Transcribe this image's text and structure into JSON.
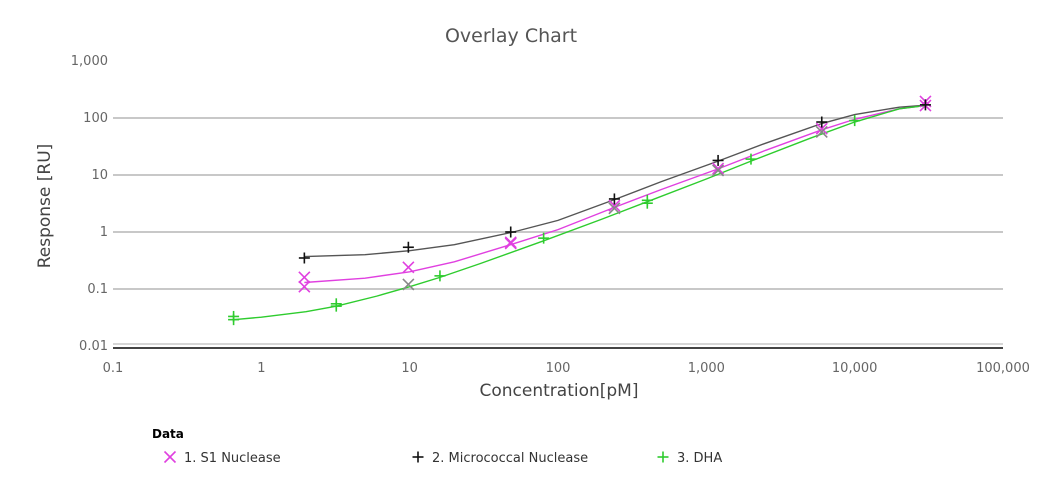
{
  "chart_data": {
    "type": "scatter",
    "title": "Overlay Chart",
    "xlabel": "Concentration[pM]",
    "ylabel": "Response [RU]",
    "x_scale": "log",
    "y_scale": "log",
    "xlim": [
      0.1,
      100000
    ],
    "ylim": [
      0.01,
      1000
    ],
    "x_ticks": [
      {
        "value": 0.1,
        "label": "0.1"
      },
      {
        "value": 1,
        "label": "1"
      },
      {
        "value": 10,
        "label": "10"
      },
      {
        "value": 100,
        "label": "100"
      },
      {
        "value": 1000,
        "label": "1,000"
      },
      {
        "value": 10000,
        "label": "10,000"
      },
      {
        "value": 100000,
        "label": "100,000"
      }
    ],
    "y_ticks": [
      {
        "value": 0.01,
        "label": "0.01"
      },
      {
        "value": 0.1,
        "label": "0.1"
      },
      {
        "value": 1,
        "label": "1"
      },
      {
        "value": 10,
        "label": "10"
      },
      {
        "value": 100,
        "label": "100"
      },
      {
        "value": 1000,
        "label": "1,000"
      }
    ],
    "grid": "horizontal",
    "legend_title": "Data",
    "legend_position": "bottom-left",
    "series": [
      {
        "name": "1. S1 Nuclease",
        "marker": "x",
        "color": "#e040e0",
        "curve_color": "#e040e0",
        "points": [
          {
            "x": 1.95,
            "y": 0.16,
            "color": "#e040e0"
          },
          {
            "x": 1.95,
            "y": 0.11,
            "color": "#e040e0"
          },
          {
            "x": 9.8,
            "y": 0.24,
            "color": "#e040e0"
          },
          {
            "x": 9.8,
            "y": 0.12,
            "color": "#888888"
          },
          {
            "x": 48,
            "y": 0.63,
            "color": "#e040e0"
          },
          {
            "x": 48,
            "y": 0.66,
            "color": "#e040e0"
          },
          {
            "x": 240,
            "y": 2.9,
            "color": "#e040e0"
          },
          {
            "x": 240,
            "y": 2.6,
            "color": "#888888"
          },
          {
            "x": 1200,
            "y": 13,
            "color": "#e040e0"
          },
          {
            "x": 1200,
            "y": 12,
            "color": "#888888"
          },
          {
            "x": 6000,
            "y": 65,
            "color": "#e040e0"
          },
          {
            "x": 6000,
            "y": 57,
            "color": "#888888"
          },
          {
            "x": 30000,
            "y": 195,
            "color": "#e040e0"
          },
          {
            "x": 30000,
            "y": 165,
            "color": "#e040e0"
          }
        ],
        "curve": [
          [
            1.95,
            0.13
          ],
          [
            5,
            0.155
          ],
          [
            10,
            0.2
          ],
          [
            20,
            0.3
          ],
          [
            50,
            0.62
          ],
          [
            100,
            1.1
          ],
          [
            240,
            2.7
          ],
          [
            500,
            5.6
          ],
          [
            1200,
            12.8
          ],
          [
            2500,
            27
          ],
          [
            6000,
            62
          ],
          [
            10000,
            95
          ],
          [
            20000,
            145
          ],
          [
            30000,
            165
          ]
        ]
      },
      {
        "name": "2. Micrococcal Nuclease",
        "marker": "+",
        "color": "#111111",
        "curve_color": "#555555",
        "points": [
          {
            "x": 1.95,
            "y": 0.35,
            "color": "#111111"
          },
          {
            "x": 9.8,
            "y": 0.54,
            "color": "#111111"
          },
          {
            "x": 48,
            "y": 1.0,
            "color": "#111111"
          },
          {
            "x": 240,
            "y": 3.8,
            "color": "#111111"
          },
          {
            "x": 1200,
            "y": 18,
            "color": "#111111"
          },
          {
            "x": 6000,
            "y": 85,
            "color": "#111111"
          },
          {
            "x": 30000,
            "y": 170,
            "color": "#111111"
          }
        ],
        "curve": [
          [
            1.95,
            0.37
          ],
          [
            5,
            0.4
          ],
          [
            10,
            0.47
          ],
          [
            20,
            0.6
          ],
          [
            50,
            1.0
          ],
          [
            100,
            1.6
          ],
          [
            240,
            3.7
          ],
          [
            500,
            7.7
          ],
          [
            1200,
            17.5
          ],
          [
            2500,
            36
          ],
          [
            6000,
            80
          ],
          [
            10000,
            115
          ],
          [
            20000,
            155
          ],
          [
            30000,
            168
          ]
        ]
      },
      {
        "name": "3. DHA",
        "marker": "+",
        "color": "#2ecc2e",
        "curve_color": "#2ecc2e",
        "points": [
          {
            "x": 0.65,
            "y": 0.033,
            "color": "#2ecc2e"
          },
          {
            "x": 0.65,
            "y": 0.029,
            "color": "#2ecc2e"
          },
          {
            "x": 3.2,
            "y": 0.055,
            "color": "#2ecc2e"
          },
          {
            "x": 3.2,
            "y": 0.05,
            "color": "#2ecc2e"
          },
          {
            "x": 16,
            "y": 0.17,
            "color": "#2ecc2e"
          },
          {
            "x": 80,
            "y": 0.78,
            "color": "#2ecc2e"
          },
          {
            "x": 400,
            "y": 3.6,
            "color": "#2ecc2e"
          },
          {
            "x": 400,
            "y": 3.2,
            "color": "#2ecc2e"
          },
          {
            "x": 2000,
            "y": 19,
            "color": "#2ecc2e"
          },
          {
            "x": 10000,
            "y": 90,
            "color": "#2ecc2e"
          }
        ],
        "curve": [
          [
            0.65,
            0.029
          ],
          [
            1,
            0.032
          ],
          [
            2,
            0.04
          ],
          [
            3.2,
            0.05
          ],
          [
            6,
            0.075
          ],
          [
            10,
            0.11
          ],
          [
            16,
            0.16
          ],
          [
            30,
            0.28
          ],
          [
            80,
            0.7
          ],
          [
            200,
            1.7
          ],
          [
            400,
            3.4
          ],
          [
            1000,
            8.5
          ],
          [
            2000,
            17.5
          ],
          [
            5000,
            44
          ],
          [
            10000,
            85
          ],
          [
            20000,
            145
          ],
          [
            30000,
            165
          ]
        ]
      }
    ]
  }
}
